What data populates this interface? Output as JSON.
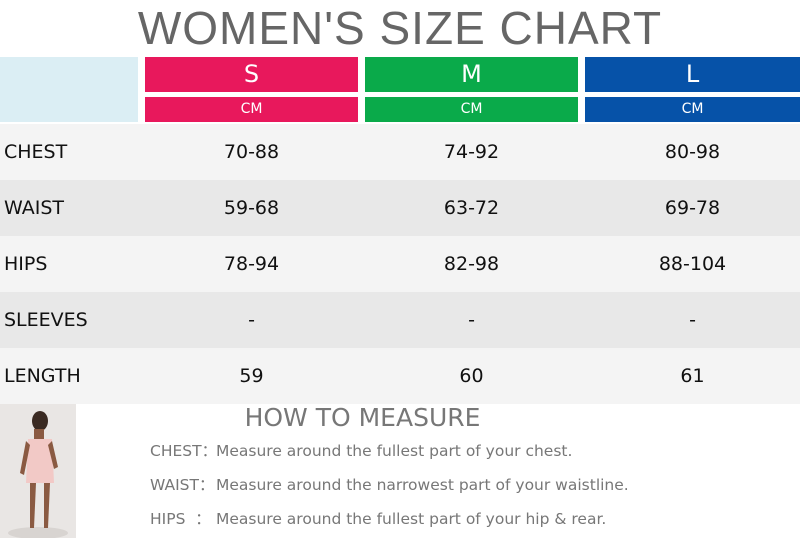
{
  "header": {
    "title": "WOMEN'S SIZE CHART"
  },
  "sizes": [
    {
      "label": "S",
      "unit": "CM",
      "color": "#e8185c"
    },
    {
      "label": "M",
      "unit": "CM",
      "color": "#0aaa4a"
    },
    {
      "label": "L",
      "unit": "CM",
      "color": "#0652a8"
    }
  ],
  "table": {
    "rows": [
      [
        "CHEST",
        "70-88",
        "74-92",
        "80-98"
      ],
      [
        "WAIST",
        "59-68",
        "63-72",
        "69-78"
      ],
      [
        "HIPS",
        "78-94",
        "82-98",
        "88-104"
      ],
      [
        "SLEEVES",
        "-",
        "-",
        "-"
      ],
      [
        "LENGTH",
        "59",
        "60",
        "61"
      ]
    ]
  },
  "measure": {
    "title": "HOW TO MEASURE",
    "items": [
      {
        "label": "CHEST：",
        "text": "Measure around the fullest part of your chest."
      },
      {
        "label": "WAIST：",
        "text": "Measure around the narrowest part of your waistline."
      },
      {
        "label": "HIPS  ：",
        "text": "Measure around the fullest part of your hip & rear."
      }
    ]
  }
}
